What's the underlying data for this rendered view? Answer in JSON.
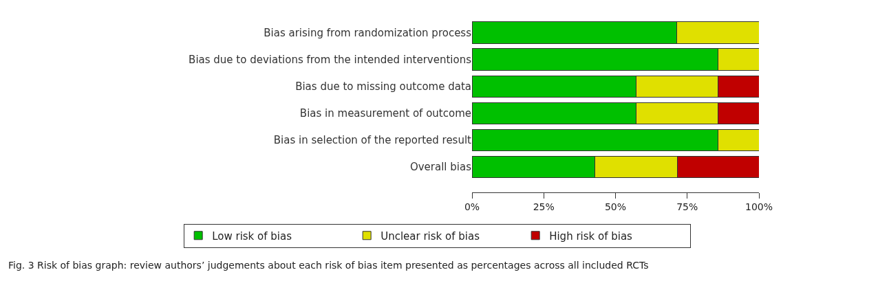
{
  "chart_data": {
    "type": "bar",
    "orientation": "horizontal",
    "stacked": true,
    "categories": [
      "Bias arising from randomization process",
      "Bias due to deviations from the intended interventions",
      "Bias due to missing outcome data",
      "Bias in measurement of outcome",
      "Bias in selection of the reported result",
      "Overall bias"
    ],
    "series": [
      {
        "name": "Low risk of bias",
        "color": "#00c000",
        "values": [
          71.4,
          85.7,
          57.1,
          57.1,
          85.7,
          42.9
        ]
      },
      {
        "name": "Unclear risk of bias",
        "color": "#e0e000",
        "values": [
          28.6,
          14.3,
          28.6,
          28.6,
          14.3,
          28.6
        ]
      },
      {
        "name": "High risk of bias",
        "color": "#c00000",
        "values": [
          null,
          null,
          14.3,
          14.3,
          null,
          28.6
        ]
      }
    ],
    "xlim": [
      0,
      100
    ],
    "xticks": [
      {
        "value": 0,
        "label": "0%"
      },
      {
        "value": 25,
        "label": "25%"
      },
      {
        "value": 50,
        "label": "50%"
      },
      {
        "value": 75,
        "label": "75%"
      },
      {
        "value": 100,
        "label": "100%"
      }
    ],
    "grid": false,
    "legend": "bottom",
    "annotations": [
      "Fig. 3 Risk of bias graph: review authors’ judgements about each risk of bias item presented as percentages across all included RCTs"
    ]
  }
}
